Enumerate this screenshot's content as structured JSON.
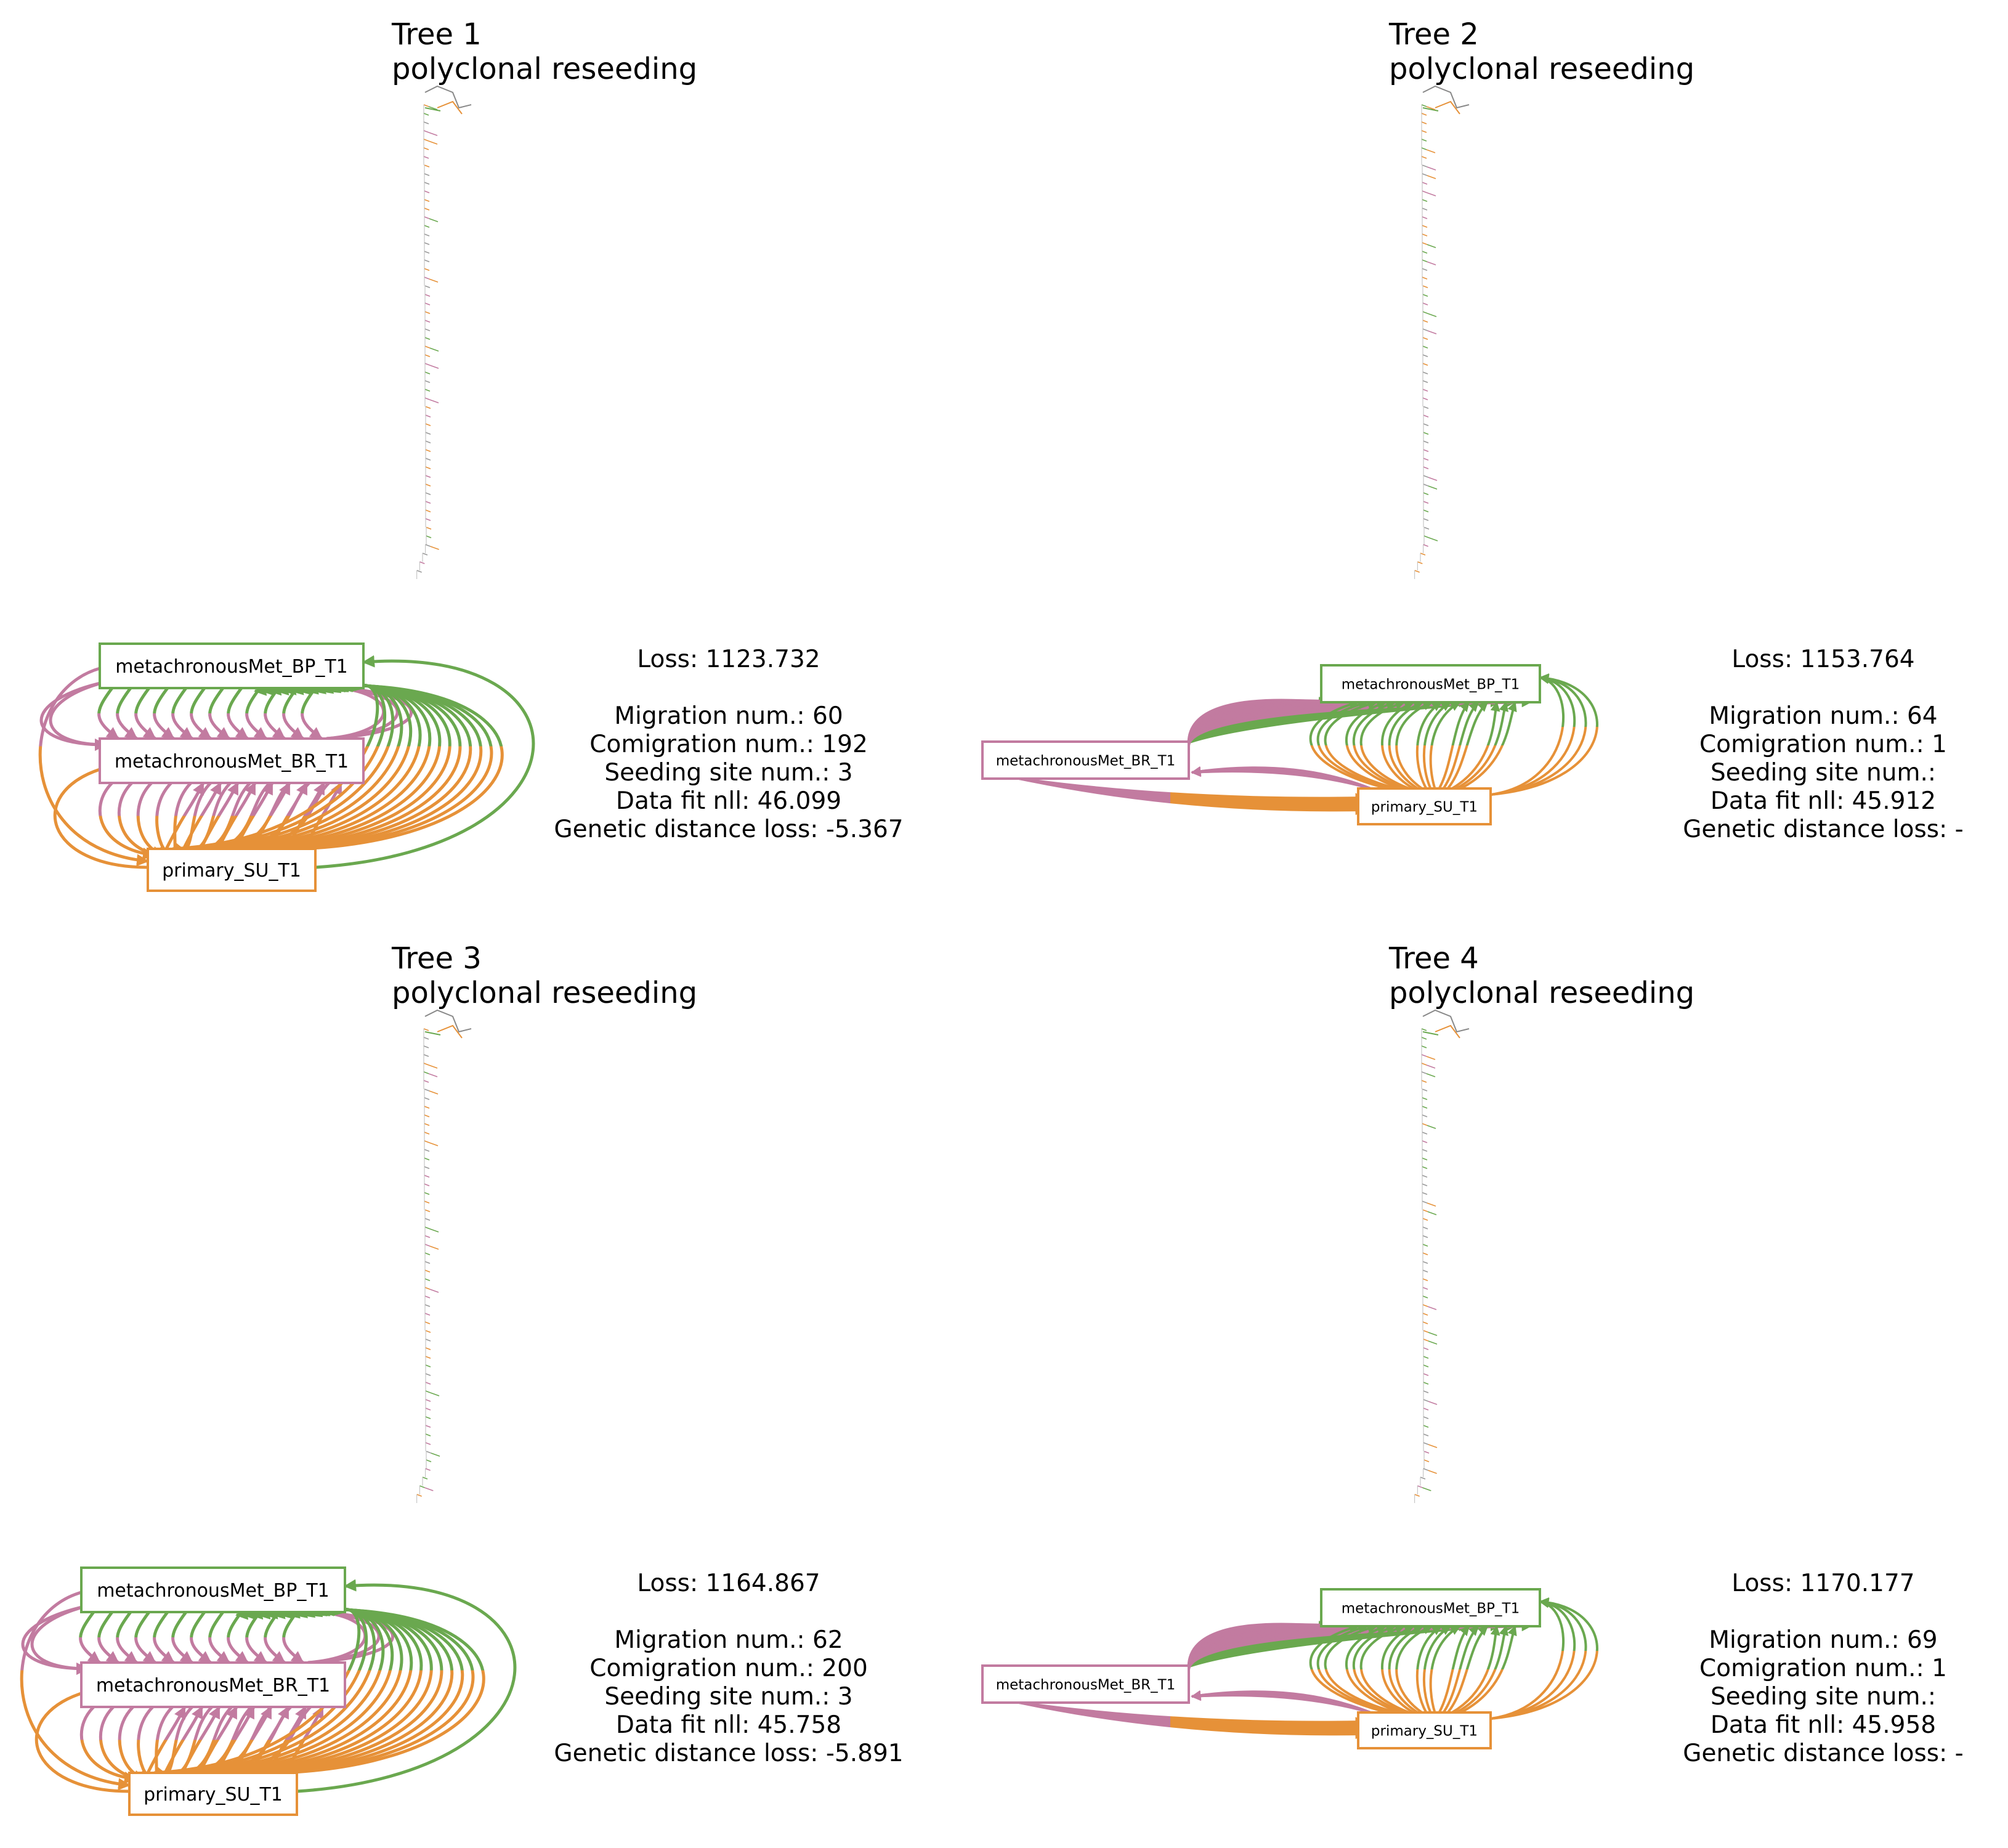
{
  "colors": {
    "metachronousMet_BP_T1": "#6aa84f",
    "metachronousMet_BR_T1": "#c27ba0",
    "primary_SU_T1": "#e69138"
  },
  "panels": [
    {
      "title": "Tree 1",
      "subtitle": "polyclonal reseeding",
      "nodes": {
        "bp": "metachronousMet_BP_T1",
        "br": "metachronousMet_BR_T1",
        "su": "primary_SU_T1"
      },
      "stats": {
        "loss": "Loss: 1123.732",
        "migration": "Migration num.: 60",
        "comigration": "Comigration num.: 192",
        "seeding": "Seeding site num.: 3",
        "datafit": "Data fit nll: 46.099",
        "genetic": "Genetic distance loss: -5.367"
      }
    },
    {
      "title": "Tree 2",
      "subtitle": "polyclonal reseeding",
      "nodes": {
        "bp": "metachronousMet_BP_T1",
        "br": "metachronousMet_BR_T1",
        "su": "primary_SU_T1"
      },
      "stats": {
        "loss": "Loss: 1153.764",
        "migration": "Migration num.: 64",
        "comigration": "Comigration num.: 1",
        "seeding": "Seeding site num.:",
        "datafit": "Data fit nll: 45.912",
        "genetic": "Genetic distance loss: -"
      }
    },
    {
      "title": "Tree 3",
      "subtitle": "polyclonal reseeding",
      "nodes": {
        "bp": "metachronousMet_BP_T1",
        "br": "metachronousMet_BR_T1",
        "su": "primary_SU_T1"
      },
      "stats": {
        "loss": "Loss: 1164.867",
        "migration": "Migration num.: 62",
        "comigration": "Comigration num.: 200",
        "seeding": "Seeding site num.: 3",
        "datafit": "Data fit nll: 45.758",
        "genetic": "Genetic distance loss: -5.891"
      }
    },
    {
      "title": "Tree 4",
      "subtitle": "polyclonal reseeding",
      "nodes": {
        "bp": "metachronousMet_BP_T1",
        "br": "metachronousMet_BR_T1",
        "su": "primary_SU_T1"
      },
      "stats": {
        "loss": "Loss: 1170.177",
        "migration": "Migration num.: 69",
        "comigration": "Comigration num.: 1",
        "seeding": "Seeding site num.:",
        "datafit": "Data fit nll: 45.958",
        "genetic": "Genetic distance loss: -"
      }
    }
  ]
}
